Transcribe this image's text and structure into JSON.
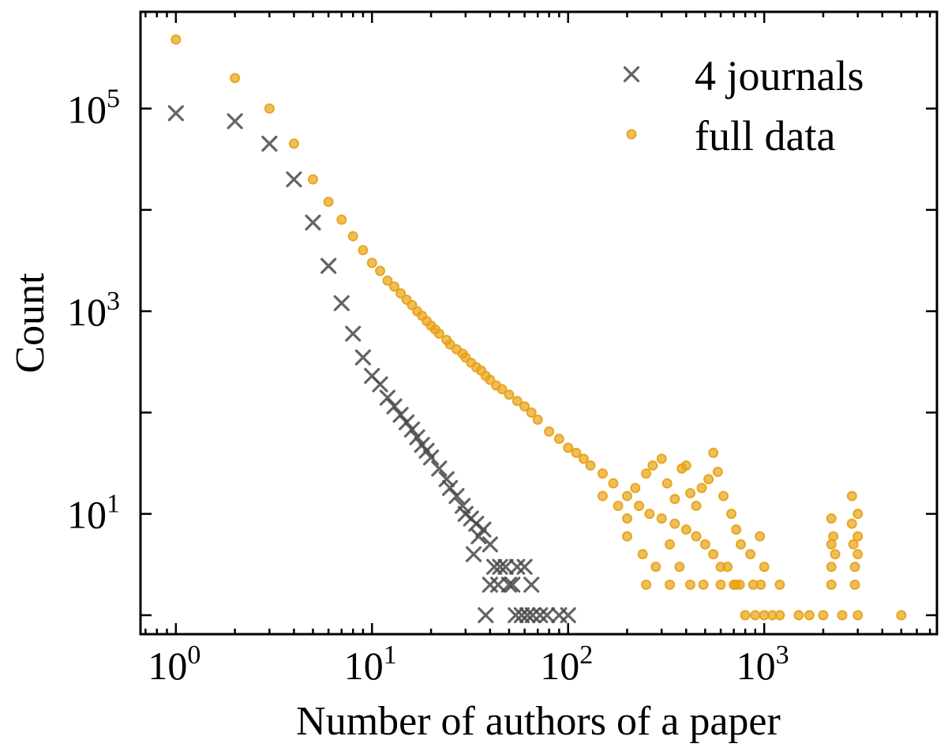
{
  "chart_data": {
    "type": "scatter",
    "title": "",
    "xlabel": "Number of authors of a paper",
    "ylabel": "Count",
    "xscale": "log",
    "yscale": "log",
    "xlim": [
      0.66,
      7600
    ],
    "ylim": [
      0.65,
      900000
    ],
    "x_ticks": [
      {
        "value": 1,
        "base": "10",
        "exp": "0"
      },
      {
        "value": 10,
        "base": "10",
        "exp": "1"
      },
      {
        "value": 100,
        "base": "10",
        "exp": "2"
      },
      {
        "value": 1000,
        "base": "10",
        "exp": "3"
      }
    ],
    "y_ticks": [
      {
        "value": 10,
        "base": "10",
        "exp": "1"
      },
      {
        "value": 1000,
        "base": "10",
        "exp": "3"
      },
      {
        "value": 100000,
        "base": "10",
        "exp": "5"
      }
    ],
    "grid": false,
    "legend_position": "top-right",
    "series": [
      {
        "name": "4 journals",
        "marker": "x",
        "color": "#4a4a4a",
        "points": [
          [
            1,
            90000
          ],
          [
            2,
            75000
          ],
          [
            3,
            45000
          ],
          [
            4,
            20000
          ],
          [
            5,
            7500
          ],
          [
            6,
            2800
          ],
          [
            7,
            1200
          ],
          [
            8,
            600
          ],
          [
            9,
            350
          ],
          [
            10,
            230
          ],
          [
            11,
            190
          ],
          [
            12,
            140
          ],
          [
            13,
            115
          ],
          [
            14,
            95
          ],
          [
            15,
            80
          ],
          [
            16,
            68
          ],
          [
            17,
            57
          ],
          [
            18,
            48
          ],
          [
            19,
            42
          ],
          [
            20,
            36
          ],
          [
            22,
            28
          ],
          [
            24,
            22
          ],
          [
            25,
            18
          ],
          [
            27,
            15
          ],
          [
            29,
            12
          ],
          [
            30,
            10
          ],
          [
            32,
            9
          ],
          [
            34,
            8
          ],
          [
            35,
            6
          ],
          [
            37,
            7
          ],
          [
            33,
            4
          ],
          [
            40,
            5
          ],
          [
            42,
            3
          ],
          [
            45,
            3
          ],
          [
            48,
            3
          ],
          [
            52,
            2
          ],
          [
            55,
            3
          ],
          [
            60,
            3
          ],
          [
            65,
            2
          ],
          [
            40,
            2
          ],
          [
            44,
            2
          ],
          [
            50,
            2
          ],
          [
            38,
            1
          ],
          [
            54,
            1
          ],
          [
            58,
            1
          ],
          [
            62,
            1
          ],
          [
            66,
            1
          ],
          [
            72,
            1
          ],
          [
            78,
            1
          ],
          [
            90,
            1
          ],
          [
            100,
            1
          ]
        ]
      },
      {
        "name": "full data",
        "marker": "o",
        "color": "#e8a317",
        "points": [
          [
            1,
            480000
          ],
          [
            2,
            200000
          ],
          [
            3,
            100000
          ],
          [
            4,
            45000
          ],
          [
            5,
            20000
          ],
          [
            6,
            12000
          ],
          [
            7,
            8000
          ],
          [
            8,
            5500
          ],
          [
            9,
            4000
          ],
          [
            10,
            3000
          ],
          [
            11,
            2500
          ],
          [
            12,
            2000
          ],
          [
            13,
            1750
          ],
          [
            14,
            1500
          ],
          [
            15,
            1300
          ],
          [
            16,
            1150
          ],
          [
            17,
            1000
          ],
          [
            18,
            900
          ],
          [
            19,
            800
          ],
          [
            20,
            720
          ],
          [
            21,
            660
          ],
          [
            22,
            600
          ],
          [
            24,
            520
          ],
          [
            25,
            470
          ],
          [
            27,
            420
          ],
          [
            29,
            380
          ],
          [
            30,
            350
          ],
          [
            32,
            310
          ],
          [
            34,
            280
          ],
          [
            36,
            260
          ],
          [
            38,
            230
          ],
          [
            40,
            210
          ],
          [
            43,
            185
          ],
          [
            46,
            170
          ],
          [
            50,
            150
          ],
          [
            55,
            130
          ],
          [
            60,
            115
          ],
          [
            65,
            100
          ],
          [
            70,
            85
          ],
          [
            80,
            65
          ],
          [
            90,
            55
          ],
          [
            100,
            45
          ],
          [
            110,
            40
          ],
          [
            120,
            35
          ],
          [
            130,
            30
          ],
          [
            150,
            25
          ],
          [
            170,
            20
          ],
          [
            200,
            15
          ],
          [
            230,
            12
          ],
          [
            260,
            10
          ],
          [
            300,
            9
          ],
          [
            350,
            8
          ],
          [
            400,
            7
          ],
          [
            450,
            6
          ],
          [
            500,
            5
          ],
          [
            550,
            4
          ],
          [
            600,
            3
          ],
          [
            650,
            3
          ],
          [
            700,
            2
          ],
          [
            750,
            2
          ],
          [
            800,
            1
          ],
          [
            900,
            1
          ],
          [
            1000,
            1
          ],
          [
            1100,
            1
          ],
          [
            1200,
            1
          ],
          [
            1500,
            1
          ],
          [
            2000,
            1
          ],
          [
            2500,
            1
          ],
          [
            3000,
            1
          ],
          [
            5000,
            1
          ],
          [
            150,
            15
          ],
          [
            180,
            12
          ],
          [
            200,
            9
          ],
          [
            220,
            18
          ],
          [
            250,
            25
          ],
          [
            270,
            30
          ],
          [
            300,
            35
          ],
          [
            320,
            20
          ],
          [
            350,
            14
          ],
          [
            380,
            28
          ],
          [
            400,
            30
          ],
          [
            420,
            16
          ],
          [
            450,
            12
          ],
          [
            480,
            18
          ],
          [
            520,
            22
          ],
          [
            550,
            40
          ],
          [
            580,
            26
          ],
          [
            620,
            15
          ],
          [
            680,
            10
          ],
          [
            720,
            7
          ],
          [
            760,
            5
          ],
          [
            850,
            4
          ],
          [
            950,
            6
          ],
          [
            1000,
            3
          ],
          [
            200,
            6
          ],
          [
            240,
            4
          ],
          [
            280,
            3
          ],
          [
            330,
            5
          ],
          [
            370,
            3
          ],
          [
            420,
            2
          ],
          [
            250,
            2
          ],
          [
            330,
            2
          ],
          [
            490,
            2
          ],
          [
            600,
            2
          ],
          [
            720,
            2
          ],
          [
            880,
            2
          ],
          [
            960,
            2
          ],
          [
            2200,
            9
          ],
          [
            2200,
            5
          ],
          [
            2200,
            3
          ],
          [
            2200,
            2
          ],
          [
            2250,
            6
          ],
          [
            2300,
            4
          ],
          [
            2800,
            15
          ],
          [
            2800,
            8
          ],
          [
            2850,
            5
          ],
          [
            2900,
            3
          ],
          [
            2900,
            2
          ],
          [
            3000,
            10
          ],
          [
            3000,
            6
          ],
          [
            3000,
            4
          ],
          [
            1200,
            2
          ],
          [
            1700,
            1
          ]
        ]
      }
    ]
  }
}
